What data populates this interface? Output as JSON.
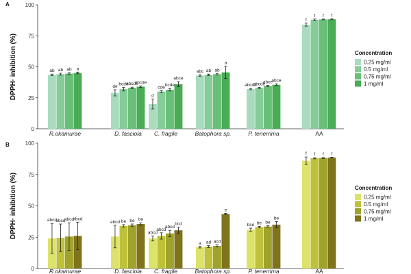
{
  "chart_data": [
    {
      "panel": "A",
      "type": "bar",
      "title": "",
      "xlabel": "",
      "ylabel": "DPPH· inhibition (%)",
      "ylim": [
        0,
        100
      ],
      "yticks": [
        0,
        25,
        50,
        75,
        100
      ],
      "categories": [
        "R.okamurae",
        "D. fasciola",
        "C. fragile",
        "Batophora sp.",
        "P. tenerrima",
        "AA"
      ],
      "italic": [
        true,
        true,
        true,
        true,
        true,
        false
      ],
      "legend_title": "Concentration",
      "legend_position": "right",
      "series": [
        {
          "name": "0.25 mg/ml",
          "color": "#a9dcbf",
          "values": [
            43.5,
            29,
            20,
            43,
            32,
            84
          ],
          "errors": [
            0.6,
            2.5,
            4,
            0.6,
            0.5,
            1.2
          ],
          "letters": [
            "ab",
            "de",
            "d",
            "abc",
            "abcde",
            "f"
          ]
        },
        {
          "name": "0.5 mg/ml",
          "color": "#85cc98",
          "values": [
            44,
            32,
            30,
            43.5,
            33,
            88
          ],
          "errors": [
            0.8,
            1.5,
            0.8,
            0.6,
            0.5,
            0.5
          ],
          "letters": [
            "ab",
            "bcde",
            "cde",
            "ab",
            "abcde",
            "f"
          ]
        },
        {
          "name": "0.75 mg/ml",
          "color": "#68bf77",
          "values": [
            44.5,
            33,
            31.5,
            44,
            34.5,
            88.2
          ],
          "errors": [
            0.8,
            0.6,
            1,
            0.6,
            0.5,
            0.3
          ],
          "letters": [
            "ab",
            "abcde",
            "bcde",
            "ab",
            "abce",
            "f"
          ]
        },
        {
          "name": "1 mg/ml",
          "color": "#4aac54",
          "values": [
            45,
            34,
            36,
            45.5,
            35.5,
            88.3
          ],
          "errors": [
            0.7,
            0.6,
            2,
            5,
            0.7,
            0.3
          ],
          "letters": [
            "a",
            "abcde",
            "abce",
            "a",
            "abce",
            "f"
          ]
        }
      ]
    },
    {
      "panel": "B",
      "type": "bar",
      "title": "",
      "xlabel": "",
      "ylabel": "DPPH· inhibition (%)",
      "ylim": [
        0,
        100
      ],
      "yticks": [
        0,
        25,
        50,
        75,
        100
      ],
      "categories": [
        "R.okamurae",
        "D. fasciola",
        "C. fragile",
        "Batophora sp.",
        "P. tenerrima",
        "AA"
      ],
      "italic": [
        true,
        true,
        true,
        true,
        true,
        false
      ],
      "legend_title": "Concentration",
      "legend_position": "right",
      "series": [
        {
          "name": "0.25 mg/ml",
          "color": "#dde36a",
          "values": [
            24,
            25.5,
            24,
            17,
            31,
            86
          ],
          "errors": [
            12,
            9,
            2,
            0.6,
            1.2,
            3
          ],
          "letters": [
            "abcd",
            "abcd",
            "abcd",
            "a",
            "bce",
            "f"
          ]
        },
        {
          "name": "0.5 mg/ml",
          "color": "#bfc13a",
          "values": [
            24.5,
            34,
            26,
            17.5,
            33,
            88
          ],
          "errors": [
            11,
            1,
            2.5,
            0.8,
            0.6,
            0.5
          ],
          "letters": [
            "abcd",
            "be",
            "abcd",
            "ad",
            "be",
            "f"
          ]
        },
        {
          "name": "0.75 mg/ml",
          "color": "#9fa22b",
          "values": [
            25.5,
            34.5,
            28,
            18,
            33.5,
            88.2
          ],
          "errors": [
            11,
            1,
            2.5,
            0.8,
            0.6,
            0.4
          ],
          "letters": [
            "abcd",
            "be",
            "abcd",
            "acd",
            "be",
            "f"
          ]
        },
        {
          "name": "1 mg/ml",
          "color": "#7f731c",
          "values": [
            26,
            35.5,
            30.5,
            43.5,
            35,
            88.5
          ],
          "errors": [
            11,
            1,
            2.5,
            0.5,
            2.5,
            0.3
          ],
          "letters": [
            "abcd",
            "be",
            "bcd",
            "e",
            "be",
            "f"
          ]
        }
      ]
    }
  ]
}
